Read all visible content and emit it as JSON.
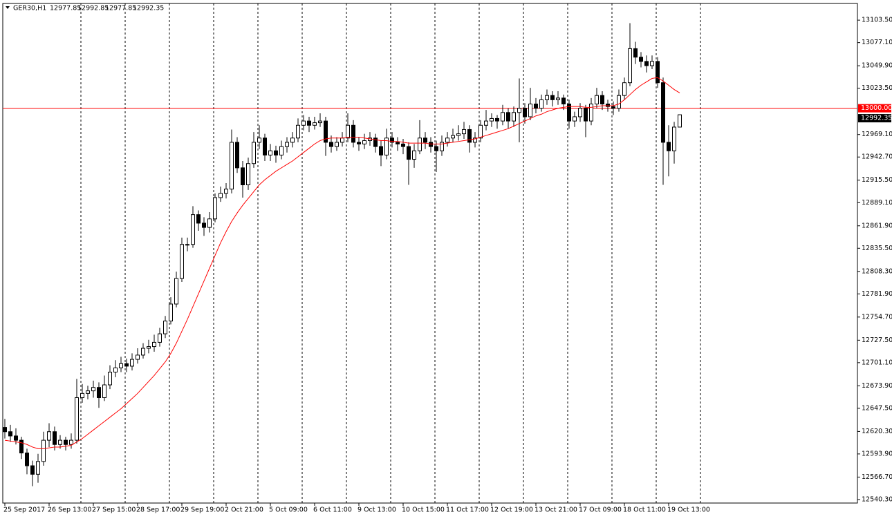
{
  "chart_data": {
    "type": "candlestick",
    "symbol": "GER30,H1",
    "categories": [
      "25 Sep 2017",
      null,
      null,
      null,
      null,
      null,
      null,
      null,
      "26 Sep 13:00",
      null,
      null,
      null,
      null,
      null,
      null,
      null,
      "27 Sep 15:00",
      null,
      null,
      null,
      null,
      null,
      null,
      null,
      "28 Sep 17:00",
      null,
      null,
      null,
      null,
      null,
      null,
      null,
      "29 Sep 19:00",
      null,
      null,
      null,
      null,
      null,
      null,
      null,
      "2 Oct 21:00",
      null,
      null,
      null,
      null,
      null,
      null,
      null,
      "5 Oct 09:00",
      null,
      null,
      null,
      null,
      null,
      null,
      null,
      "6 Oct 11:00",
      null,
      null,
      null,
      null,
      null,
      null,
      null,
      "9 Oct 13:00",
      null,
      null,
      null,
      null,
      null,
      null,
      null,
      "10 Oct 15:00",
      null,
      null,
      null,
      null,
      null,
      null,
      null,
      "11 Oct 17:00",
      null,
      null,
      null,
      null,
      null,
      null,
      null,
      "12 Oct 19:00",
      null,
      null,
      null,
      null,
      null,
      null,
      null,
      "13 Oct 21:00",
      null,
      null,
      null,
      null,
      null,
      null,
      null,
      "17 Oct 09:00",
      null,
      null,
      null,
      null,
      null,
      null,
      null,
      "18 Oct 11:00",
      null,
      null,
      null,
      null,
      null,
      null,
      null,
      "19 Oct 13:00",
      null,
      null
    ],
    "ohlc": [
      [
        12625,
        12635,
        12612,
        12620
      ],
      [
        12620,
        12628,
        12608,
        12615
      ],
      [
        12615,
        12624,
        12605,
        12610
      ],
      [
        12610,
        12614,
        12588,
        12595
      ],
      [
        12595,
        12600,
        12570,
        12580
      ],
      [
        12580,
        12586,
        12556,
        12570
      ],
      [
        12570,
        12594,
        12560,
        12585
      ],
      [
        12585,
        12620,
        12580,
        12610
      ],
      [
        12610,
        12630,
        12602,
        12620
      ],
      [
        12620,
        12626,
        12598,
        12605
      ],
      [
        12605,
        12616,
        12600,
        12610
      ],
      [
        12610,
        12614,
        12598,
        12605
      ],
      [
        12605,
        12618,
        12600,
        12610
      ],
      [
        12610,
        12682,
        12606,
        12660
      ],
      [
        12660,
        12676,
        12654,
        12665
      ],
      [
        12665,
        12674,
        12658,
        12668
      ],
      [
        12668,
        12680,
        12660,
        12672
      ],
      [
        12672,
        12678,
        12648,
        12660
      ],
      [
        12660,
        12686,
        12656,
        12675
      ],
      [
        12675,
        12698,
        12670,
        12690
      ],
      [
        12690,
        12704,
        12684,
        12695
      ],
      [
        12695,
        12708,
        12690,
        12700
      ],
      [
        12700,
        12706,
        12690,
        12697
      ],
      [
        12697,
        12712,
        12692,
        12705
      ],
      [
        12705,
        12718,
        12700,
        12710
      ],
      [
        12710,
        12724,
        12706,
        12718
      ],
      [
        12718,
        12728,
        12712,
        12720
      ],
      [
        12720,
        12734,
        12714,
        12725
      ],
      [
        12725,
        12742,
        12720,
        12735
      ],
      [
        12735,
        12756,
        12730,
        12750
      ],
      [
        12750,
        12778,
        12746,
        12770
      ],
      [
        12770,
        12808,
        12766,
        12800
      ],
      [
        12800,
        12848,
        12796,
        12840
      ],
      [
        12840,
        12848,
        12832,
        12840
      ],
      [
        12840,
        12885,
        12836,
        12875
      ],
      [
        12875,
        12880,
        12856,
        12865
      ],
      [
        12865,
        12872,
        12850,
        12860
      ],
      [
        12860,
        12878,
        12854,
        12870
      ],
      [
        12870,
        12900,
        12866,
        12895
      ],
      [
        12895,
        12908,
        12890,
        12900
      ],
      [
        12900,
        12912,
        12894,
        12905
      ],
      [
        12905,
        12975,
        12900,
        12960
      ],
      [
        12960,
        12966,
        12924,
        12930
      ],
      [
        12930,
        12938,
        12895,
        12910
      ],
      [
        12910,
        12942,
        12904,
        12935
      ],
      [
        12935,
        12972,
        12930,
        12960
      ],
      [
        12960,
        12980,
        12952,
        12965
      ],
      [
        12965,
        12970,
        12938,
        12945
      ],
      [
        12945,
        12958,
        12938,
        12950
      ],
      [
        12950,
        12956,
        12936,
        12945
      ],
      [
        12945,
        12962,
        12940,
        12955
      ],
      [
        12955,
        12966,
        12948,
        12960
      ],
      [
        12960,
        12972,
        12954,
        12965
      ],
      [
        12965,
        12988,
        12960,
        12980
      ],
      [
        12980,
        12992,
        12974,
        12985
      ],
      [
        12985,
        12990,
        12972,
        12980
      ],
      [
        12980,
        12990,
        12975,
        12983
      ],
      [
        12983,
        12994,
        12978,
        12985
      ],
      [
        12985,
        12990,
        12944,
        12960
      ],
      [
        12960,
        12968,
        12948,
        12955
      ],
      [
        12955,
        12966,
        12950,
        12960
      ],
      [
        12960,
        12972,
        12955,
        12965
      ],
      [
        12965,
        12994,
        12960,
        12980
      ],
      [
        12980,
        12986,
        12954,
        12960
      ],
      [
        12960,
        12966,
        12950,
        12958
      ],
      [
        12958,
        12970,
        12952,
        12962
      ],
      [
        12962,
        12972,
        12956,
        12965
      ],
      [
        12965,
        12970,
        12948,
        12955
      ],
      [
        12955,
        12962,
        12932,
        12945
      ],
      [
        12945,
        12976,
        12940,
        12965
      ],
      [
        12965,
        12972,
        12954,
        12960
      ],
      [
        12960,
        12966,
        12950,
        12958
      ],
      [
        12958,
        12964,
        12946,
        12955
      ],
      [
        12955,
        12960,
        12910,
        12940
      ],
      [
        12940,
        12958,
        12930,
        12950
      ],
      [
        12950,
        12986,
        12946,
        12965
      ],
      [
        12965,
        12972,
        12952,
        12960
      ],
      [
        12960,
        12966,
        12948,
        12955
      ],
      [
        12955,
        12962,
        12925,
        12950
      ],
      [
        12950,
        12968,
        12944,
        12960
      ],
      [
        12960,
        12972,
        12955,
        12965
      ],
      [
        12965,
        12976,
        12960,
        12968
      ],
      [
        12968,
        12980,
        12962,
        12970
      ],
      [
        12970,
        12984,
        12964,
        12975
      ],
      [
        12975,
        12980,
        12948,
        12960
      ],
      [
        12960,
        12972,
        12954,
        12965
      ],
      [
        12965,
        12986,
        12960,
        12980
      ],
      [
        12980,
        12998,
        12974,
        12985
      ],
      [
        12985,
        12994,
        12978,
        12988
      ],
      [
        12988,
        12992,
        12976,
        12985
      ],
      [
        12985,
        13004,
        12980,
        12995
      ],
      [
        12995,
        13000,
        12976,
        12985
      ],
      [
        12985,
        13002,
        12978,
        12995
      ],
      [
        12995,
        13035,
        12960,
        13000
      ],
      [
        13000,
        13006,
        12982,
        12990
      ],
      [
        12990,
        13024,
        12986,
        13005
      ],
      [
        13005,
        13012,
        12994,
        13000
      ],
      [
        13000,
        13016,
        12996,
        13010
      ],
      [
        13010,
        13022,
        13004,
        13015
      ],
      [
        13015,
        13020,
        13002,
        13010
      ],
      [
        13010,
        13020,
        13004,
        13012
      ],
      [
        13012,
        13016,
        12998,
        13005
      ],
      [
        13005,
        13010,
        12976,
        12985
      ],
      [
        12985,
        12996,
        12978,
        12990
      ],
      [
        12990,
        13006,
        12984,
        13000
      ],
      [
        13000,
        13004,
        12966,
        12985
      ],
      [
        12985,
        13012,
        12980,
        13005
      ],
      [
        13005,
        13024,
        13000,
        13015
      ],
      [
        13015,
        13020,
        12998,
        13005
      ],
      [
        13005,
        13010,
        12996,
        13002
      ],
      [
        13002,
        13008,
        12992,
        13000
      ],
      [
        13000,
        13022,
        12996,
        13015
      ],
      [
        13015,
        13036,
        13010,
        13030
      ],
      [
        13030,
        13100,
        13026,
        13070
      ],
      [
        13070,
        13078,
        13052,
        13060
      ],
      [
        13060,
        13066,
        13048,
        13055
      ],
      [
        13055,
        13062,
        13042,
        13050
      ],
      [
        13050,
        13062,
        13046,
        13055
      ],
      [
        13055,
        13060,
        13024,
        13030
      ],
      [
        13030,
        13036,
        12910,
        12960
      ],
      [
        12960,
        12980,
        12920,
        12950
      ],
      [
        12950,
        12984,
        12935,
        12977.85
      ],
      [
        12977.85,
        12992.85,
        12977.85,
        12992.35
      ]
    ],
    "ma": {
      "color": "#ff0000",
      "values": [
        12610,
        12609,
        12608,
        12607,
        12605,
        12602,
        12600,
        12600,
        12601,
        12602,
        12602,
        12603,
        12604,
        12608,
        12612,
        12617,
        12622,
        12627,
        12632,
        12637,
        12642,
        12647,
        12653,
        12659,
        12665,
        12672,
        12679,
        12686,
        12694,
        12702,
        12712,
        12724,
        12738,
        12752,
        12767,
        12782,
        12797,
        12812,
        12827,
        12842,
        12855,
        12867,
        12877,
        12886,
        12894,
        12902,
        12910,
        12916,
        12921,
        12926,
        12930,
        12934,
        12938,
        12943,
        12948,
        12953,
        12958,
        12962,
        12964,
        12965,
        12965,
        12965,
        12966,
        12966,
        12966,
        12965,
        12964,
        12963,
        12962,
        12962,
        12961,
        12961,
        12960,
        12959,
        12959,
        12959,
        12959,
        12958,
        12958,
        12958,
        12959,
        12960,
        12961,
        12962,
        12963,
        12964,
        12966,
        12968,
        12970,
        12972,
        12974,
        12976,
        12979,
        12982,
        12985,
        12988,
        12991,
        12993,
        12996,
        12998,
        13000,
        13001,
        13002,
        13002,
        13002,
        13001,
        13001,
        13002,
        13003,
        13003,
        13003,
        13005,
        13010,
        13016,
        13022,
        13027,
        13031,
        13035,
        13036,
        13032,
        13027,
        13022,
        13018
      ]
    },
    "hline": {
      "value": 13000,
      "label": "13000.00",
      "color": "#ff0000"
    },
    "up_color": "#ffffff",
    "down_color": "#000000",
    "outline_color": "#000000",
    "ylim": [
      12536.2,
      13123.1
    ],
    "yticks": [
      {
        "value": 13103.5,
        "label": "13103.50"
      },
      {
        "value": 13077.1,
        "label": "13077.10"
      },
      {
        "value": 13049.9,
        "label": "13049.90"
      },
      {
        "value": 13023.5,
        "label": "13023.50"
      },
      {
        "value": 12969.1,
        "label": "12969.10"
      },
      {
        "value": 12942.7,
        "label": "12942.70"
      },
      {
        "value": 12915.5,
        "label": "12915.50"
      },
      {
        "value": 12889.1,
        "label": "12889.10"
      },
      {
        "value": 12861.9,
        "label": "12861.90"
      },
      {
        "value": 12835.5,
        "label": "12835.50"
      },
      {
        "value": 12808.3,
        "label": "12808.30"
      },
      {
        "value": 12781.9,
        "label": "12781.90"
      },
      {
        "value": 12754.7,
        "label": "12754.70"
      },
      {
        "value": 12727.5,
        "label": "12727.50"
      },
      {
        "value": 12701.1,
        "label": "12701.10"
      },
      {
        "value": 12673.9,
        "label": "12673.90"
      },
      {
        "value": 12647.5,
        "label": "12647.50"
      },
      {
        "value": 12620.3,
        "label": "12620.30"
      },
      {
        "value": 12593.9,
        "label": "12593.90"
      },
      {
        "value": 12566.7,
        "label": "12566.70"
      },
      {
        "value": 12540.3,
        "label": "12540.30"
      }
    ],
    "xgrid": true
  }
}
